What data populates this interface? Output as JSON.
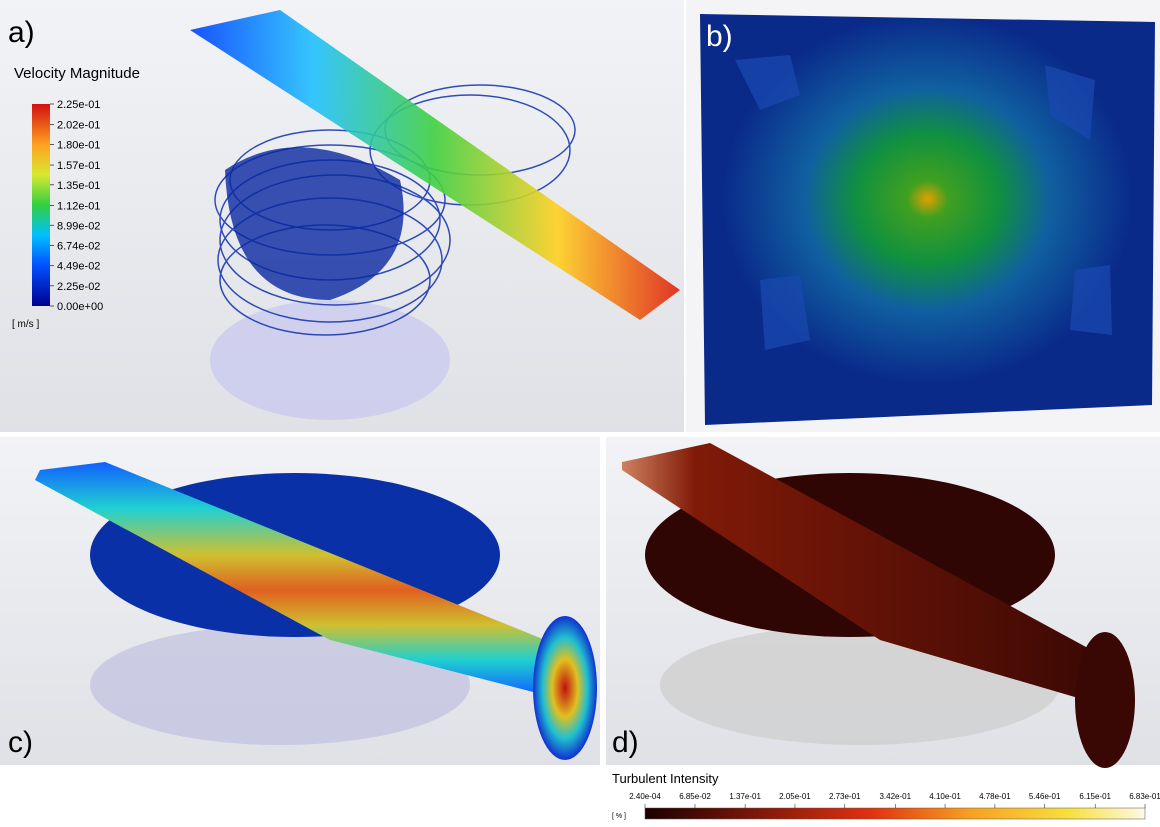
{
  "panels": [
    {
      "label": "a)"
    },
    {
      "label": "b)"
    },
    {
      "label": "c)"
    },
    {
      "label": "d)"
    }
  ],
  "velocity_legend": {
    "title": "Velocity Magnitude",
    "unit": "[ m/s ]",
    "range": [
      0,
      0.225
    ],
    "ticks": [
      {
        "value": 0.225,
        "label": "2.25e-01"
      },
      {
        "value": 0.202,
        "label": "2.02e-01"
      },
      {
        "value": 0.18,
        "label": "1.80e-01"
      },
      {
        "value": 0.157,
        "label": "1.57e-01"
      },
      {
        "value": 0.135,
        "label": "1.35e-01"
      },
      {
        "value": 0.112,
        "label": "1.12e-01"
      },
      {
        "value": 0.0899,
        "label": "8.99e-02"
      },
      {
        "value": 0.0674,
        "label": "6.74e-02"
      },
      {
        "value": 0.0449,
        "label": "4.49e-02"
      },
      {
        "value": 0.0225,
        "label": "2.25e-02"
      },
      {
        "value": 0,
        "label": "0.00e+00"
      }
    ]
  },
  "turbulence_legend": {
    "title": "Turbulent Intensity",
    "unit": "[ % ]",
    "range": [
      0.00024,
      0.683
    ],
    "ticks": [
      {
        "value": 0.00024,
        "label": "2.40e-04"
      },
      {
        "value": 0.0685,
        "label": "6.85e-02"
      },
      {
        "value": 0.137,
        "label": "1.37e-01"
      },
      {
        "value": 0.205,
        "label": "2.05e-01"
      },
      {
        "value": 0.273,
        "label": "2.73e-01"
      },
      {
        "value": 0.342,
        "label": "3.42e-01"
      },
      {
        "value": 0.41,
        "label": "4.10e-01"
      },
      {
        "value": 0.478,
        "label": "4.78e-01"
      },
      {
        "value": 0.546,
        "label": "5.46e-01"
      },
      {
        "value": 0.615,
        "label": "6.15e-01"
      },
      {
        "value": 0.683,
        "label": "6.83e-01"
      }
    ]
  }
}
